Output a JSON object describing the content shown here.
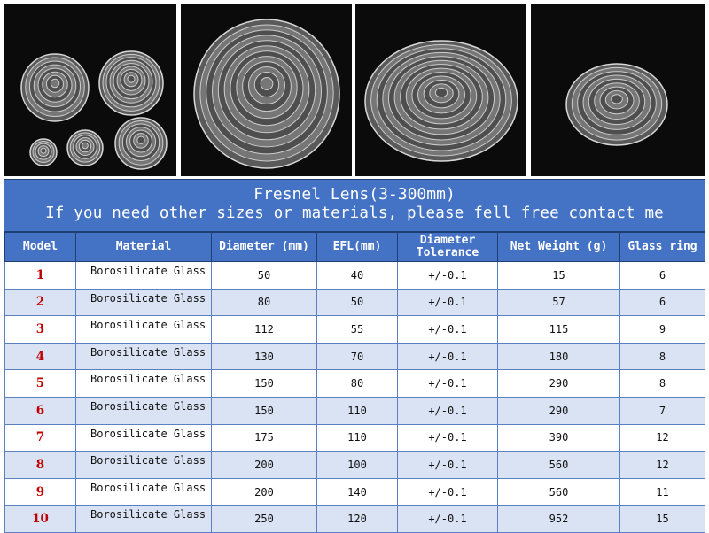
{
  "photos": [
    {
      "name": "five-fresnel-lenses-photo"
    },
    {
      "name": "single-fresnel-lens-front-photo"
    },
    {
      "name": "single-fresnel-lens-angled-photo"
    },
    {
      "name": "small-fresnel-lens-photo"
    }
  ],
  "banner": {
    "title": "Fresnel Lens(3-300mm)",
    "subtitle": "If you need other sizes or materials, please fell free contact me"
  },
  "table": {
    "headers": [
      "Model",
      "Material",
      "Diameter (mm)",
      "EFL(mm)",
      "Diameter Tolerance",
      "Net Weight (g)",
      "Glass ring"
    ],
    "rows": [
      [
        "1",
        "Borosilicate Glass",
        "50",
        "40",
        "+/-0.1",
        "15",
        "6"
      ],
      [
        "2",
        "Borosilicate Glass",
        "80",
        "50",
        "+/-0.1",
        "57",
        "6"
      ],
      [
        "3",
        "Borosilicate Glass",
        "112",
        "55",
        "+/-0.1",
        "115",
        "9"
      ],
      [
        "4",
        "Borosilicate Glass",
        "130",
        "70",
        "+/-0.1",
        "180",
        "8"
      ],
      [
        "5",
        "Borosilicate Glass",
        "150",
        "80",
        "+/-0.1",
        "290",
        "8"
      ],
      [
        "6",
        "Borosilicate Glass",
        "150",
        "110",
        "+/-0.1",
        "290",
        "7"
      ],
      [
        "7",
        "Borosilicate Glass",
        "175",
        "110",
        "+/-0.1",
        "390",
        "12"
      ],
      [
        "8",
        "Borosilicate Glass",
        "200",
        "100",
        "+/-0.1",
        "560",
        "12"
      ],
      [
        "9",
        "Borosilicate Glass",
        "200",
        "140",
        "+/-0.1",
        "560",
        "11"
      ],
      [
        "10",
        "Borosilicate Glass",
        "250",
        "120",
        "+/-0.1",
        "952",
        "15"
      ]
    ]
  },
  "colors": {
    "header_blue": "#4472c4",
    "row_alt": "#dae3f3",
    "model_red": "#c00000",
    "photo_bg": "#0b0b0b"
  }
}
